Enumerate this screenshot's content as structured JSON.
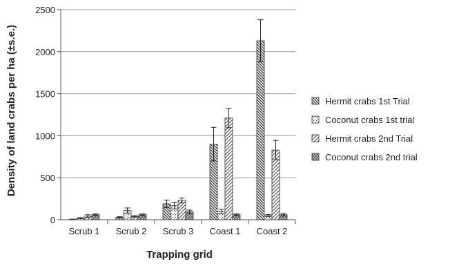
{
  "chart_data": {
    "type": "bar",
    "title": "",
    "xlabel": "Trapping grid",
    "ylabel": "Density of land crabs per ha (±s.e.)",
    "ylim": [
      0,
      2500
    ],
    "yticks": [
      0,
      500,
      1000,
      1500,
      2000,
      2500
    ],
    "categories": [
      "Scrub 1",
      "Scrub 2",
      "Scrub 3",
      "Coast 1",
      "Coast 2"
    ],
    "grid": true,
    "legend_position": "right",
    "series": [
      {
        "name": "Hermit crabs 1st Trial",
        "pattern": "diag-back-dense",
        "values": [
          5,
          30,
          190,
          900,
          2130
        ],
        "errors": [
          3,
          8,
          45,
          200,
          250
        ]
      },
      {
        "name": "Coconut crabs 1st trial",
        "pattern": "dots",
        "values": [
          20,
          110,
          170,
          100,
          50
        ],
        "errors": [
          5,
          30,
          40,
          25,
          12
        ]
      },
      {
        "name": "Hermit crabs 2nd Trial",
        "pattern": "diag-forward",
        "values": [
          45,
          40,
          230,
          1210,
          830
        ],
        "errors": [
          15,
          8,
          30,
          115,
          115
        ]
      },
      {
        "name": "Coconut crabs 2nd trial",
        "pattern": "crosshatch",
        "values": [
          60,
          60,
          95,
          60,
          60
        ],
        "errors": [
          10,
          10,
          20,
          10,
          15
        ]
      }
    ]
  }
}
